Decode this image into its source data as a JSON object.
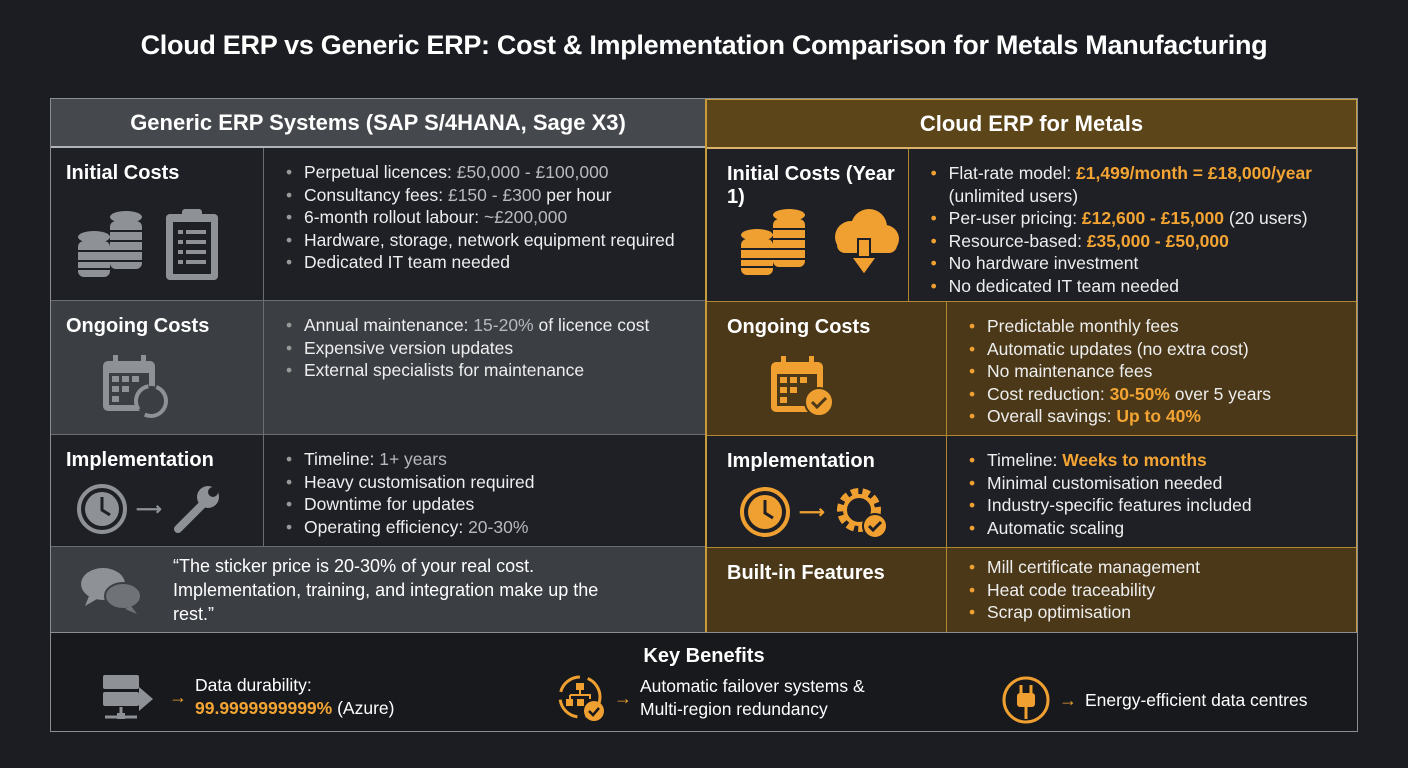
{
  "title": "Cloud ERP vs Generic ERP: Cost & Implementation Comparison for Metals Manufacturing",
  "colors": {
    "accent": "#f3a432",
    "generic_header": "#45484d",
    "cloud_header": "#5c4519"
  },
  "generic": {
    "header": "Generic ERP Systems (SAP S/4HANA, Sage X3)",
    "rows": [
      {
        "label": "Initial Costs",
        "icons": [
          "coin-stacks-icon",
          "clipboard-checklist-icon"
        ],
        "items": [
          [
            {
              "t": "Perpetual licences: "
            },
            {
              "t": "£50,000 - £100,000",
              "h": 1
            }
          ],
          [
            {
              "t": "Consultancy fees: "
            },
            {
              "t": "£150 - £300",
              "h": 1
            },
            {
              "t": " per hour"
            }
          ],
          [
            {
              "t": "6-month rollout labour: "
            },
            {
              "t": "~£200,000",
              "h": 1
            }
          ],
          [
            {
              "t": "Hardware, storage, network equipment required"
            }
          ],
          [
            {
              "t": "Dedicated IT team needed"
            }
          ]
        ]
      },
      {
        "label": "Ongoing Costs",
        "icons": [
          "calendar-refresh-icon"
        ],
        "items": [
          [
            {
              "t": "Annual maintenance: "
            },
            {
              "t": "15-20%",
              "h": 1
            },
            {
              "t": " of licence cost"
            }
          ],
          [
            {
              "t": "Expensive version updates"
            }
          ],
          [
            {
              "t": "External specialists for maintenance"
            }
          ]
        ]
      },
      {
        "label": "Implementation",
        "icons": [
          "clock-icon",
          "arrow-icon",
          "wrench-icon"
        ],
        "items": [
          [
            {
              "t": "Timeline: "
            },
            {
              "t": "1+ years",
              "h": 1
            }
          ],
          [
            {
              "t": "Heavy customisation required"
            }
          ],
          [
            {
              "t": "Downtime for updates"
            }
          ],
          [
            {
              "t": "Operating efficiency: "
            },
            {
              "t": "20-30%",
              "h": 1
            }
          ]
        ]
      }
    ],
    "quote": "“The sticker price is 20-30% of your real cost. Implementation, training, and integration make up the rest.”"
  },
  "cloud": {
    "header": "Cloud ERP for Metals",
    "rows": [
      {
        "label": "Initial Costs (Year 1)",
        "icons": [
          "coin-stacks-icon",
          "cloud-download-icon"
        ],
        "items": [
          [
            {
              "t": "Flat-rate model: "
            },
            {
              "t": "£1,499/month = £18,000/year",
              "h": 1
            },
            {
              "t": " (unlimited users)"
            }
          ],
          [
            {
              "t": "Per-user pricing: "
            },
            {
              "t": "£12,600 - £15,000",
              "h": 1
            },
            {
              "t": " (20 users)"
            }
          ],
          [
            {
              "t": "Resource-based: "
            },
            {
              "t": "£35,000 - £50,000",
              "h": 1
            }
          ],
          [
            {
              "t": "No hardware investment"
            }
          ],
          [
            {
              "t": "No dedicated IT team needed"
            }
          ]
        ]
      },
      {
        "label": "Ongoing Costs",
        "icons": [
          "calendar-check-icon"
        ],
        "items": [
          [
            {
              "t": "Predictable monthly fees"
            }
          ],
          [
            {
              "t": "Automatic updates (no extra cost)"
            }
          ],
          [
            {
              "t": "No maintenance fees"
            }
          ],
          [
            {
              "t": "Cost reduction: "
            },
            {
              "t": "30-50%",
              "h": 1
            },
            {
              "t": " over 5 years"
            }
          ],
          [
            {
              "t": "Overall savings: "
            },
            {
              "t": "Up to 40%",
              "h": 1
            }
          ]
        ]
      },
      {
        "label": "Implementation",
        "icons": [
          "clock-icon",
          "arrow-icon",
          "gear-check-icon"
        ],
        "items": [
          [
            {
              "t": "Timeline: "
            },
            {
              "t": "Weeks to months",
              "h": 1
            }
          ],
          [
            {
              "t": "Minimal customisation needed"
            }
          ],
          [
            {
              "t": "Industry-specific features included"
            }
          ],
          [
            {
              "t": "Automatic scaling"
            }
          ]
        ]
      },
      {
        "label": "Built-in Features",
        "icons": [],
        "items": [
          [
            {
              "t": "Mill certificate management"
            }
          ],
          [
            {
              "t": "Heat code traceability"
            }
          ],
          [
            {
              "t": "Scrap optimisation"
            }
          ]
        ]
      }
    ]
  },
  "benefits": {
    "title": "Key Benefits",
    "items": [
      {
        "icon": "server-network-icon",
        "line1": "Data durability:",
        "value": "99.9999999999%",
        "line2": " (Azure)"
      },
      {
        "icon": "failover-hierarchy-icon",
        "line1": "Automatic failover systems &",
        "line2": "Multi-region redundancy"
      },
      {
        "icon": "power-plug-icon",
        "line1": "Energy-efficient data centres"
      }
    ]
  }
}
